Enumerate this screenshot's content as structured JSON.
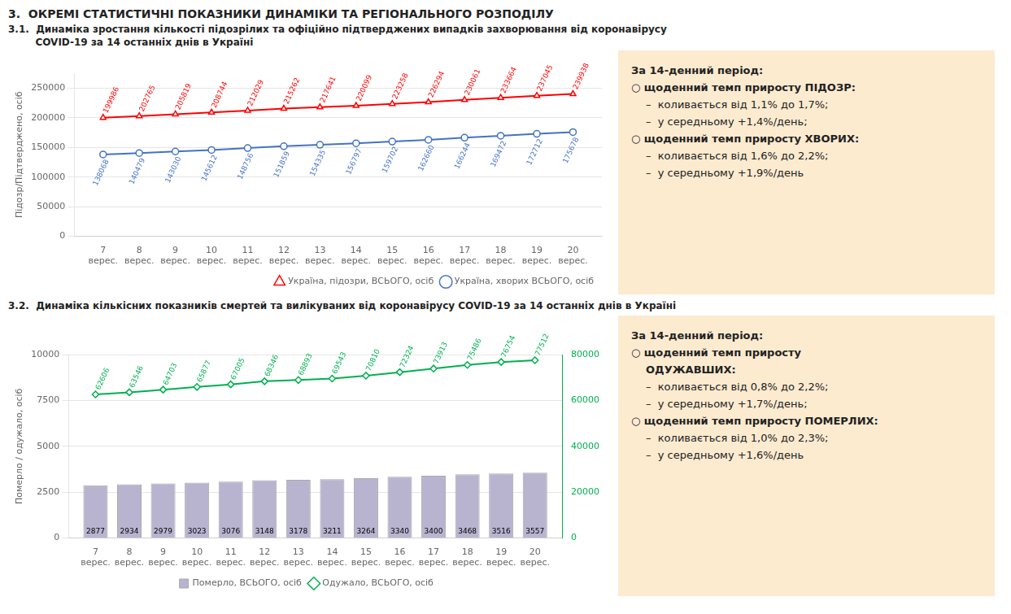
{
  "chart_data": [
    {
      "type": "line",
      "title": "3.  ОКРЕМІ СТАТИСТИЧНІ ПОКАЗНИКИ ДИНАМІКИ ТА РЕГІОНАЛЬНОГО РОЗПОДІЛУ",
      "subtitle": [
        "3.1.  Динаміка зростання кількості підозрілих та офіційно підтверджених випадків захворювання від коронавірусу",
        "        COVID-19 за 14 останніх днів в Україні"
      ],
      "x": [
        7,
        8,
        9,
        10,
        11,
        12,
        13,
        14,
        15,
        16,
        17,
        18,
        19,
        20
      ],
      "xlim": [
        6.2,
        20.8
      ],
      "xticks": [
        {
          "value": 7,
          "label": "7\nверес."
        },
        {
          "value": 8,
          "label": "8\nверес."
        },
        {
          "value": 9,
          "label": "9\nверес."
        },
        {
          "value": 10,
          "label": "10\nверес."
        },
        {
          "value": 11,
          "label": "11\nверес."
        },
        {
          "value": 12,
          "label": "12\nверес."
        },
        {
          "value": 13,
          "label": "13\nверес."
        },
        {
          "value": 14,
          "label": "14\nверес."
        },
        {
          "value": 15,
          "label": "15\nверес."
        },
        {
          "value": 16,
          "label": "16\nверес."
        },
        {
          "value": 17,
          "label": "17\nверес."
        },
        {
          "value": 18,
          "label": "18\nверес."
        },
        {
          "value": 19,
          "label": "19\nверес."
        },
        {
          "value": 20,
          "label": "20\nверес."
        }
      ],
      "ylabel": "Підозр/Підтверджено, осіб",
      "ylim": [
        0,
        275000
      ],
      "yticks": [
        0,
        50000,
        100000,
        150000,
        200000,
        250000
      ],
      "series": [
        {
          "name": "Україна, підозри, ВСЬОГО, осіб",
          "color": "#FF0000",
          "marker": "triangle",
          "values": [
            199986,
            202765,
            205819,
            208744,
            212029,
            215262,
            217641,
            220099,
            223258,
            226294,
            230061,
            233664,
            237045,
            239938
          ]
        },
        {
          "name": "Україна, хворих ВСЬОГО, осіб",
          "color": "#4472C4",
          "marker": "circle",
          "values": [
            138068,
            140479,
            143030,
            145612,
            148756,
            151859,
            154335,
            156797,
            159702,
            162660,
            166244,
            169472,
            172712,
            175678
          ]
        }
      ],
      "grid": "y",
      "legend": "lower right",
      "data_labels": true,
      "annotations": [
        "За 14-денний період:",
        "○ щоденний темп приросту ПІДОЗР:",
        "–  коливається від 1,1% до 1,7%;",
        "–  у середньому +1,4%/день;",
        "○ щоденний темп приросту ХВОРИХ:",
        "–  коливається від 1,6% до 2,2%;",
        "–  у середньому +1,9%/день"
      ]
    },
    {
      "type": "bar",
      "title": "3.2.  Динаміка кількісних показників смертей та вилікуваних від коронавірусу COVID-19 за 14 останніх днів в Україні",
      "x": [
        7,
        8,
        9,
        10,
        11,
        12,
        13,
        14,
        15,
        16,
        17,
        18,
        19,
        20
      ],
      "xlim": [
        6.2,
        20.8
      ],
      "xticks": [
        {
          "value": 7,
          "label": "7\nверес."
        },
        {
          "value": 8,
          "label": "8\nверес."
        },
        {
          "value": 9,
          "label": "9\nверес."
        },
        {
          "value": 10,
          "label": "10\nверес."
        },
        {
          "value": 11,
          "label": "11\nверес."
        },
        {
          "value": 12,
          "label": "12\nверес."
        },
        {
          "value": 13,
          "label": "13\nверес."
        },
        {
          "value": 14,
          "label": "14\nверес."
        },
        {
          "value": 15,
          "label": "15\nверес."
        },
        {
          "value": 16,
          "label": "16\nверес."
        },
        {
          "value": 17,
          "label": "17\nверес."
        },
        {
          "value": 18,
          "label": "18\nверес."
        },
        {
          "value": 19,
          "label": "19\nверес."
        },
        {
          "value": 20,
          "label": "20\nверес."
        }
      ],
      "ylabel": "Померло / одужало, осіб",
      "ylim": [
        0,
        10000
      ],
      "yticks": [
        0,
        2500,
        5000,
        7500,
        10000
      ],
      "y2lim": [
        0,
        80000
      ],
      "y2ticks": [
        0,
        20000,
        40000,
        60000,
        80000
      ],
      "series": [
        {
          "name": "Померло, ВСЬОГО, осіб",
          "type": "bar",
          "color": "#B8B4D0",
          "values": [
            2877,
            2934,
            2979,
            3023,
            3076,
            3148,
            3178,
            3211,
            3264,
            3340,
            3400,
            3468,
            3516,
            3557
          ]
        },
        {
          "name": "Одужало, ВСЬОГО, осіб",
          "type": "line",
          "axis": "y2",
          "color": "#00B050",
          "marker": "diamond",
          "values": [
            62606,
            63546,
            64703,
            65877,
            67005,
            68346,
            68893,
            69543,
            70810,
            72324,
            73913,
            75486,
            76754,
            77512
          ]
        }
      ],
      "grid": "y",
      "legend": "lower center",
      "data_labels": true,
      "annotations": [
        "За 14-денний період:",
        "○ щоденний темп приросту",
        "ОДУЖАВШИХ:",
        "–  коливається від 0,8% до 2,2%;",
        "–  у середньому +1,7%/день;",
        "○ щоденний темп приросту ПОМЕРЛИХ:",
        "–  коливається від 1,0% до 2,3%;",
        "–  у середньому +1,6%/день"
      ]
    }
  ]
}
